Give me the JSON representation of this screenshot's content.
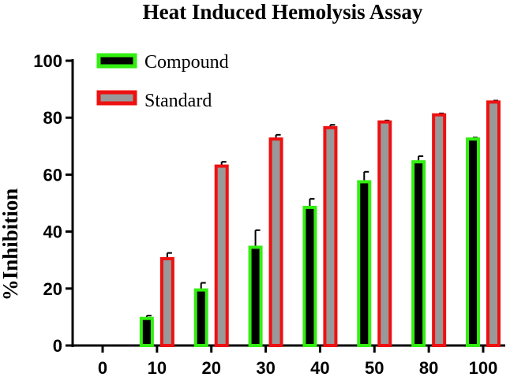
{
  "chart_data": {
    "type": "bar",
    "title": "Heat Induced Hemolysis Assay",
    "xlabel": "",
    "ylabel": "%Inhibition",
    "categories": [
      "0",
      "10",
      "20",
      "30",
      "40",
      "50",
      "80",
      "100"
    ],
    "ylim": [
      0,
      100
    ],
    "yticks": [
      0,
      20,
      40,
      60,
      80,
      100
    ],
    "grid": false,
    "legend_position": "top-left",
    "series": [
      {
        "name": "Compound",
        "values": [
          0,
          9.5,
          19.5,
          34.5,
          48.5,
          57.5,
          64.5,
          72.5
        ],
        "errors": [
          0,
          1,
          2.5,
          6,
          3,
          3.5,
          2,
          0.5
        ],
        "fill": "#000000",
        "stroke": "#33ee11"
      },
      {
        "name": "Standard",
        "values": [
          0,
          30.5,
          63,
          72.5,
          76.5,
          78.5,
          81,
          85.5
        ],
        "errors": [
          0,
          2,
          1.5,
          1.5,
          1,
          0.5,
          0.5,
          0.5
        ],
        "fill": "#999999",
        "stroke": "#ee1111"
      }
    ]
  }
}
